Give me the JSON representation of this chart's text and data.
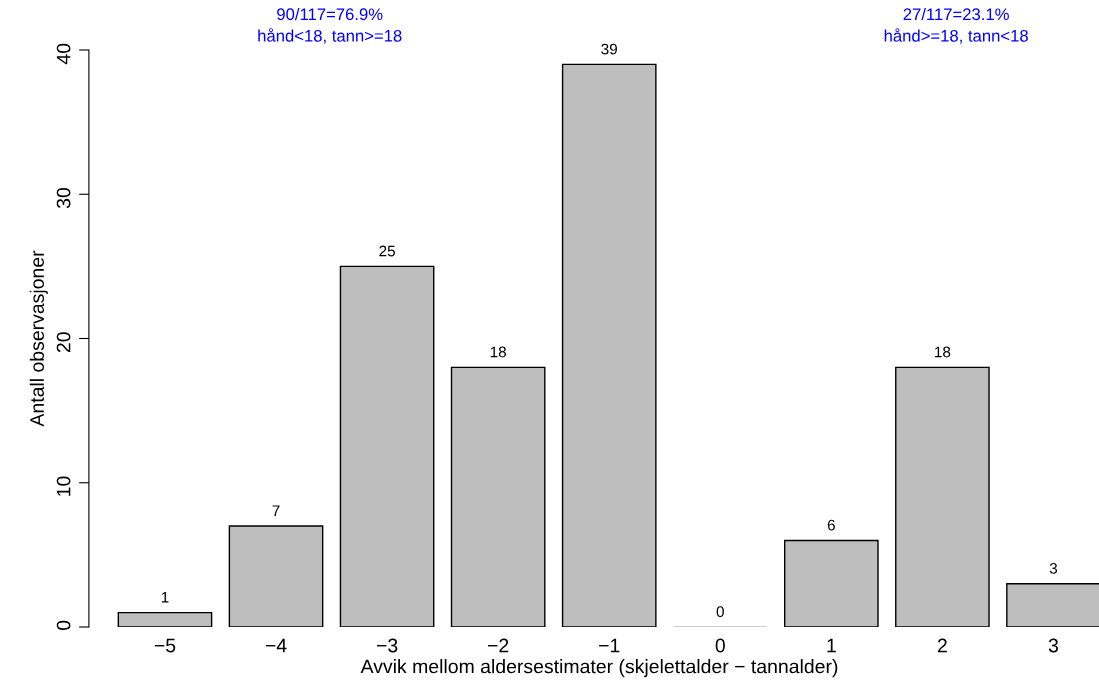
{
  "chart_data": {
    "type": "bar",
    "categories": [
      "−5",
      "−4",
      "−3",
      "−2",
      "−1",
      "0",
      "1",
      "2",
      "3"
    ],
    "values": [
      1,
      7,
      25,
      18,
      39,
      0,
      6,
      18,
      3
    ],
    "color": "#bebebe",
    "xlabel": "Avvik mellom aldersestimater (skjelettalder − tannalder)",
    "ylabel": "Antall observasjoner",
    "ylim": [
      0,
      40
    ],
    "yticks": [
      0,
      10,
      20,
      30,
      40
    ],
    "data_labels": true,
    "grid": false,
    "legend": false,
    "annotations": [
      "90/117=76.9%\nhånd<18, tann>=18",
      "27/117=23.1%\nhånd>=18, tann<18"
    ]
  }
}
